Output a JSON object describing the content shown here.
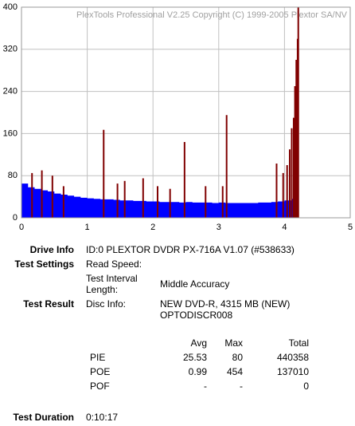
{
  "chart_data": {
    "type": "area",
    "title": "PlexTools Professional V2.25 Copyright (C) 1999-2005 Plextor SA/NV",
    "xlim": [
      0,
      5
    ],
    "xticks": [
      0,
      1,
      2,
      3,
      4,
      5
    ],
    "ylim": [
      0,
      400
    ],
    "yticks": [
      0,
      80,
      160,
      240,
      320,
      400
    ],
    "grid": true,
    "series": [
      {
        "type": "area",
        "color": "#0000ff",
        "x": [
          0,
          0.1,
          0.2,
          0.3,
          0.4,
          0.5,
          0.6,
          0.7,
          0.8,
          0.9,
          1.0,
          1.1,
          1.2,
          1.3,
          1.4,
          1.5,
          1.6,
          1.7,
          1.8,
          1.9,
          2.0,
          2.1,
          2.2,
          2.3,
          2.4,
          2.5,
          2.6,
          2.7,
          2.8,
          2.9,
          3.0,
          3.1,
          3.2,
          3.3,
          3.4,
          3.5,
          3.6,
          3.7,
          3.8,
          3.9,
          4.0,
          4.1,
          4.2
        ],
        "values": [
          65,
          58,
          55,
          52,
          50,
          46,
          44,
          42,
          40,
          38,
          37,
          36,
          35,
          35,
          34,
          33,
          33,
          32,
          32,
          31,
          31,
          30,
          30,
          30,
          29,
          30,
          29,
          29,
          29,
          28,
          29,
          28,
          28,
          28,
          28,
          28,
          29,
          29,
          30,
          31,
          33,
          36,
          42
        ]
      },
      {
        "type": "spikes",
        "color": "#800000",
        "x": [
          0.16,
          0.31,
          0.47,
          0.64,
          1.25,
          1.46,
          1.57,
          1.85,
          2.07,
          2.26,
          2.48,
          2.8,
          3.06,
          3.12,
          3.88,
          3.98,
          4.04,
          4.08,
          4.11,
          4.14,
          4.16,
          4.18,
          4.2,
          4.21
        ],
        "values": [
          85,
          90,
          80,
          60,
          167,
          65,
          70,
          75,
          60,
          55,
          144,
          60,
          60,
          195,
          103,
          85,
          100,
          130,
          170,
          190,
          250,
          300,
          340,
          400
        ]
      }
    ]
  },
  "report": {
    "drive_info": {
      "label": "Drive Info",
      "value": "ID:0 PLEXTOR DVDR PX-716A V1.07 (#538633)"
    },
    "test_settings": {
      "label": "Test Settings",
      "read_speed": "Read Speed:",
      "interval_label": "Test Interval Length:",
      "interval_value": "Middle Accuracy"
    },
    "test_result": {
      "label": "Test Result",
      "disc_label": "Disc Info:",
      "disc_lines": [
        "NEW DVD-R, 4315 MB (NEW)",
        "OPTODISCR008"
      ]
    },
    "stats": {
      "headers": [
        "Avg",
        "Max",
        "Total"
      ],
      "rows": [
        [
          "PIE",
          25.53,
          80,
          440358
        ],
        [
          "POE",
          0.99,
          454,
          137010
        ],
        [
          "POF",
          "-",
          "-",
          0
        ]
      ]
    },
    "duration": {
      "label": "Test Duration",
      "value": "0:10:17"
    }
  }
}
